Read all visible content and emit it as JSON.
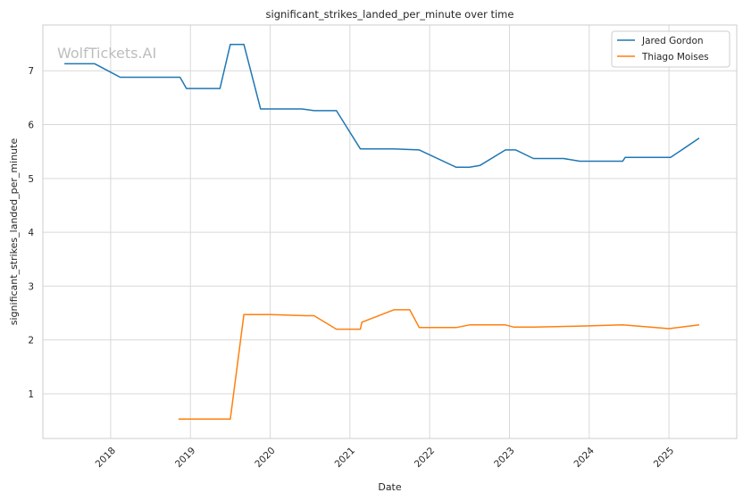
{
  "chart_data": {
    "type": "line",
    "title": "significant_strikes_landed_per_minute over time",
    "xlabel": "Date",
    "ylabel": "significant_strikes_landed_per_minute",
    "watermark": "WolfTickets.AI",
    "xlim": [
      2017.15,
      2025.85
    ],
    "ylim": [
      0.17,
      7.85
    ],
    "xticks": [
      2018,
      2019,
      2020,
      2021,
      2022,
      2023,
      2024,
      2025
    ],
    "xtick_labels": [
      "2018",
      "2019",
      "2020",
      "2021",
      "2022",
      "2023",
      "2024",
      "2025"
    ],
    "yticks": [
      1,
      2,
      3,
      4,
      5,
      6,
      7
    ],
    "yticks_labels": [
      "1",
      "2",
      "3",
      "4",
      "5",
      "6",
      "7"
    ],
    "grid": true,
    "legend_position": "top-right",
    "series": [
      {
        "name": "Jared Gordon",
        "color": "#1f77b4",
        "x": [
          2017.42,
          2017.8,
          2018.12,
          2018.87,
          2018.95,
          2019.37,
          2019.5,
          2019.67,
          2019.88,
          2020.4,
          2020.55,
          2020.83,
          2021.13,
          2021.55,
          2021.87,
          2022.33,
          2022.5,
          2022.63,
          2022.95,
          2023.08,
          2023.3,
          2023.68,
          2023.88,
          2024.3,
          2024.42,
          2024.45,
          2025.02,
          2025.38
        ],
        "y": [
          7.13,
          7.13,
          6.88,
          6.88,
          6.67,
          6.67,
          7.49,
          7.49,
          6.29,
          6.29,
          6.26,
          6.26,
          5.55,
          5.55,
          5.53,
          5.21,
          5.21,
          5.24,
          5.53,
          5.53,
          5.37,
          5.37,
          5.32,
          5.32,
          5.32,
          5.39,
          5.39,
          5.75
        ]
      },
      {
        "name": "Thiago Moises",
        "color": "#ff7f0e",
        "x": [
          2018.85,
          2019.5,
          2019.67,
          2020.0,
          2020.45,
          2020.55,
          2020.83,
          2021.13,
          2021.15,
          2021.55,
          2021.75,
          2021.87,
          2022.33,
          2022.5,
          2022.95,
          2023.05,
          2023.3,
          2023.65,
          2023.95,
          2024.42,
          2025.0,
          2025.38
        ],
        "y": [
          0.53,
          0.53,
          2.47,
          2.47,
          2.45,
          2.45,
          2.2,
          2.2,
          2.33,
          2.56,
          2.56,
          2.23,
          2.23,
          2.28,
          2.28,
          2.24,
          2.24,
          2.25,
          2.26,
          2.28,
          2.21,
          2.28
        ]
      }
    ]
  }
}
